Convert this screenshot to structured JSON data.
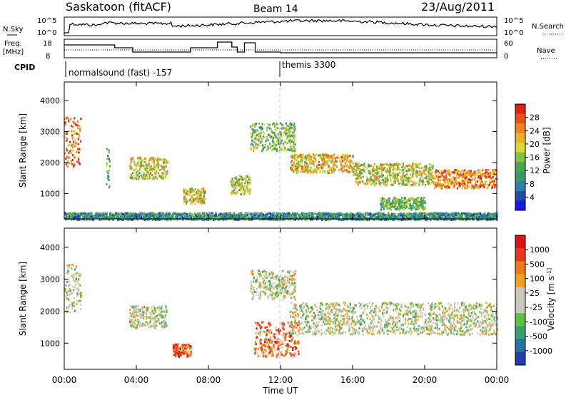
{
  "header": {
    "title": "Saskatoon (fitACF)",
    "beam": "Beam 14",
    "date": "23/Aug/2011"
  },
  "nsky_panel": {
    "left_label": "N.Sky",
    "right_label": "N.Search",
    "left_ticks": [
      "10^5",
      "10^0"
    ],
    "right_ticks": [
      "10^5",
      "10^0"
    ]
  },
  "freq_panel": {
    "left_label_1": "Freq.",
    "left_label_2": "[MHz]",
    "right_label": "Nave",
    "left_ticks": [
      "18",
      "8"
    ],
    "right_ticks": [
      "60",
      "0"
    ]
  },
  "cpid": {
    "label": "CPID",
    "segments": [
      {
        "text": "normalsound (fast) -157",
        "start_hour": 0
      },
      {
        "text": "themis 3300",
        "start_hour": 12
      }
    ]
  },
  "chart_data": [
    {
      "type": "heatmap",
      "name": "power",
      "ylabel": "Slant Range [km]",
      "ylim": [
        180,
        4600
      ],
      "yticks": [
        1000,
        2000,
        3000,
        4000
      ],
      "xlim": [
        0,
        24
      ],
      "colorbar": {
        "label": "Power [dB]",
        "ticks": [
          "4",
          "8",
          "12",
          "16",
          "20",
          "24",
          "28"
        ],
        "colors": [
          "#1a1ae6",
          "#1f4fa8",
          "#2a7fb0",
          "#3a9a6a",
          "#48a850",
          "#88c040",
          "#d8d830",
          "#f0b020",
          "#f08020",
          "#e85018",
          "#e02010"
        ]
      },
      "features": [
        {
          "t0": 0.0,
          "t1": 0.9,
          "r0": 1900,
          "r1": 3500,
          "level": 0.82
        },
        {
          "t0": 2.3,
          "t1": 2.5,
          "r0": 900,
          "r1": 2500,
          "level": 0.35
        },
        {
          "t0": 3.6,
          "t1": 5.7,
          "r0": 1500,
          "r1": 2200,
          "level": 0.6
        },
        {
          "t0": 6.6,
          "t1": 7.8,
          "r0": 700,
          "r1": 1200,
          "level": 0.6
        },
        {
          "t0": 9.2,
          "t1": 10.3,
          "r0": 1000,
          "r1": 1600,
          "level": 0.55
        },
        {
          "t0": 10.3,
          "t1": 12.8,
          "r0": 2400,
          "r1": 3300,
          "level": 0.45
        },
        {
          "t0": 12.5,
          "t1": 16.0,
          "r0": 1700,
          "r1": 2300,
          "level": 0.65
        },
        {
          "t0": 16.0,
          "t1": 20.5,
          "r0": 1300,
          "r1": 2000,
          "level": 0.58
        },
        {
          "t0": 20.5,
          "t1": 24.0,
          "r0": 1200,
          "r1": 1800,
          "level": 0.78
        },
        {
          "t0": 17.5,
          "t1": 20.0,
          "r0": 500,
          "r1": 900,
          "level": 0.45
        },
        {
          "t0": 0.0,
          "t1": 24.0,
          "r0": 180,
          "r1": 400,
          "level": 0.3
        }
      ]
    },
    {
      "type": "heatmap",
      "name": "velocity",
      "ylabel": "Slant Range [km]",
      "ylim": [
        180,
        4600
      ],
      "yticks": [
        1000,
        2000,
        3000,
        4000
      ],
      "xlim": [
        0,
        24
      ],
      "xlabel": "Time UT",
      "xticks": [
        "00:00",
        "04:00",
        "08:00",
        "12:00",
        "16:00",
        "20:00",
        "00:00"
      ],
      "colorbar": {
        "label": "Velocity [m s^-1]",
        "ticks": [
          "1000",
          "500",
          "100",
          "25",
          "-25",
          "-100",
          "-500",
          "-1000"
        ],
        "colors": [
          "#2040b0",
          "#2a70a8",
          "#38a070",
          "#60c040",
          "#c8c8c0",
          "#c8c8c0",
          "#f0a020",
          "#f07818",
          "#e83818",
          "#e01010"
        ]
      },
      "features": [
        {
          "t0": 0.0,
          "t1": 0.9,
          "r0": 2000,
          "r1": 3500,
          "level": 0.5
        },
        {
          "t0": 3.6,
          "t1": 5.7,
          "r0": 1500,
          "r1": 2200,
          "level": 0.48
        },
        {
          "t0": 6.0,
          "t1": 7.0,
          "r0": 600,
          "r1": 1000,
          "level": 0.85
        },
        {
          "t0": 10.5,
          "t1": 13.0,
          "r0": 600,
          "r1": 1700,
          "level": 0.75
        },
        {
          "t0": 10.3,
          "t1": 12.8,
          "r0": 2400,
          "r1": 3300,
          "level": 0.48
        },
        {
          "t0": 12.5,
          "t1": 24.0,
          "r0": 1300,
          "r1": 2300,
          "level": 0.48
        }
      ]
    }
  ]
}
